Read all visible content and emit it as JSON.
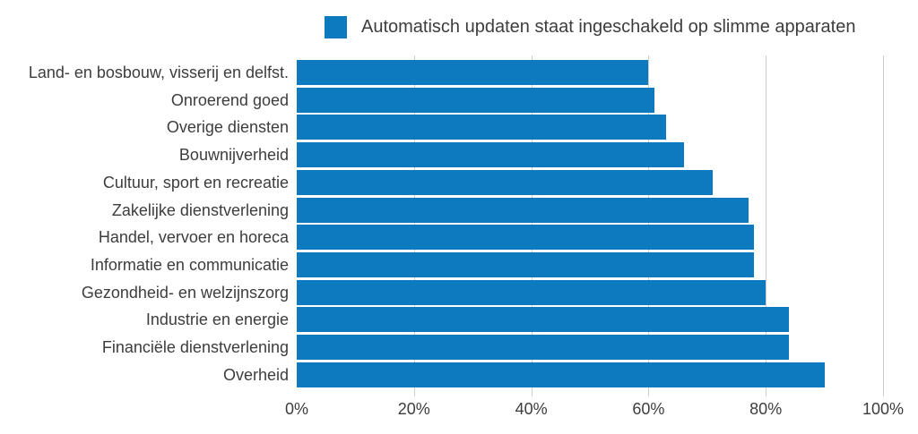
{
  "legend": {
    "label": "Automatisch updaten staat ingeschakeld op slimme apparaten"
  },
  "colors": {
    "bar": "#0d7ac0",
    "gridline": "#cccccc",
    "text": "#3d3d3d"
  },
  "chart_data": {
    "type": "bar",
    "orientation": "horizontal",
    "title": "",
    "legend": [
      "Automatisch updaten staat ingeschakeld op slimme apparaten"
    ],
    "legend_position": "top",
    "categories": [
      "Land- en bosbouw, visserij en delfst.",
      "Onroerend goed",
      "Overige diensten",
      "Bouwnijverheid",
      "Cultuur, sport en recreatie",
      "Zakelijke dienstverlening",
      "Handel, vervoer en horeca",
      "Informatie en communicatie",
      "Gezondheid- en welzijnszorg",
      "Industrie en energie",
      "Financiële dienstverlening",
      "Overheid"
    ],
    "values": [
      60,
      61,
      63,
      66,
      71,
      77,
      78,
      78,
      80,
      84,
      84,
      90
    ],
    "unit": "%",
    "xlabel": "",
    "ylabel": "",
    "xlim": [
      0,
      100
    ],
    "x_tick_labels": [
      "0%",
      "20%",
      "40%",
      "60%",
      "80%",
      "100%"
    ],
    "x_tick_values": [
      0,
      20,
      40,
      60,
      80,
      100
    ],
    "grid": "vertical-only",
    "gridline_ticks": [
      20,
      40,
      60,
      80,
      100
    ]
  }
}
